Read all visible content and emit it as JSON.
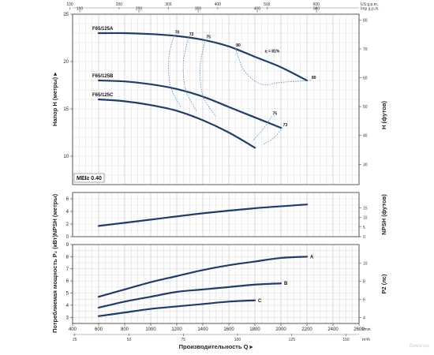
{
  "chart_data": [
    {
      "type": "line",
      "panel": "head",
      "ylabel": "Напор H (метры)",
      "ylabel_right": "H (футов)",
      "ylim": [
        7,
        25
      ],
      "y_ticks": [
        10,
        15,
        20,
        25
      ],
      "y_ticks_right": [
        10,
        20,
        30,
        40,
        50,
        60,
        70,
        80
      ],
      "x_ticks_top_usgpm": [
        100,
        200,
        300,
        400,
        500,
        600
      ],
      "x_top_usgpm_unit": "US g.p.m.",
      "x_ticks_top_impgpm": [
        100,
        200,
        300,
        400,
        500
      ],
      "x_top_impgpm_unit": "Imp g.p.m.",
      "annotation": "MEI≥ 0.40",
      "series": [
        {
          "name": "F65/125A",
          "x": [
            600,
            800,
            1000,
            1200,
            1400,
            1600,
            1800,
            2000,
            2200
          ],
          "y": [
            23.0,
            23.0,
            22.9,
            22.7,
            22.3,
            21.6,
            20.5,
            19.4,
            18.0
          ]
        },
        {
          "name": "F65/125B",
          "x": [
            600,
            800,
            1000,
            1200,
            1400,
            1600,
            1800,
            2000
          ],
          "y": [
            18.0,
            17.9,
            17.6,
            17.1,
            16.3,
            15.2,
            14.1,
            13.0
          ]
        },
        {
          "name": "F65/125C",
          "x": [
            600,
            800,
            1000,
            1200,
            1400,
            1600,
            1800
          ],
          "y": [
            16.0,
            15.8,
            15.4,
            14.8,
            13.8,
            12.5,
            10.9
          ]
        }
      ],
      "efficiency_labels": [
        {
          "label": "70",
          "x": 1180,
          "y": 22.8
        },
        {
          "label": "72",
          "x": 1290,
          "y": 22.6
        },
        {
          "label": "75",
          "x": 1420,
          "y": 22.3
        },
        {
          "label": "80",
          "x": 1650,
          "y": 21.4
        },
        {
          "label": "η = 81%",
          "x": 1870,
          "y": 20.8
        },
        {
          "label": "80",
          "x": 2230,
          "y": 18.0
        },
        {
          "label": "75",
          "x": 1930,
          "y": 14.2
        },
        {
          "label": "73",
          "x": 2010,
          "y": 13.0
        }
      ]
    },
    {
      "type": "line",
      "panel": "npsh",
      "ylabel": "NPSH (метры)",
      "ylabel_right": "NPSH (футов)",
      "ylim": [
        0,
        7
      ],
      "y_ticks": [
        0,
        2,
        4,
        6
      ],
      "y_ticks_right": [
        0,
        5,
        10,
        15
      ],
      "series": [
        {
          "x": [
            600,
            1000,
            1400,
            1800,
            2200
          ],
          "y": [
            1.7,
            2.7,
            3.7,
            4.5,
            5.1
          ]
        }
      ]
    },
    {
      "type": "line",
      "panel": "power",
      "ylabel": "Потребляемая мощность P₂ (кВт)",
      "ylabel_right": "P2 (лс)",
      "ylim": [
        2.5,
        9
      ],
      "y_ticks": [
        3,
        4,
        5,
        6,
        7,
        8,
        9
      ],
      "y_ticks_right": [
        4,
        6,
        8,
        10
      ],
      "xlabel": "Производительность Q",
      "x_unit": "l/min",
      "x_unit_bottom": "m³/h",
      "xlim": [
        400,
        2600
      ],
      "x_ticks": [
        400,
        600,
        800,
        1000,
        1200,
        1400,
        1600,
        1800,
        2000,
        2200,
        2400,
        2600
      ],
      "x_ticks_bottom": [
        25,
        50,
        75,
        100,
        125,
        150
      ],
      "series": [
        {
          "name": "A",
          "x": [
            600,
            800,
            1000,
            1200,
            1400,
            1600,
            1800,
            2000,
            2200
          ],
          "y": [
            4.7,
            5.3,
            5.9,
            6.4,
            6.9,
            7.3,
            7.6,
            7.9,
            8.0
          ]
        },
        {
          "name": "B",
          "x": [
            600,
            800,
            1000,
            1200,
            1400,
            1600,
            1800,
            2000
          ],
          "y": [
            3.8,
            4.3,
            4.7,
            5.1,
            5.3,
            5.5,
            5.7,
            5.8
          ]
        },
        {
          "name": "C",
          "x": [
            600,
            800,
            1000,
            1200,
            1400,
            1600,
            1800
          ],
          "y": [
            3.1,
            3.4,
            3.7,
            3.9,
            4.1,
            4.3,
            4.4
          ]
        }
      ]
    }
  ],
  "watermark": "Вималор",
  "colors": {
    "curve": "#1c3d6e",
    "efficiency": "#4a8fd0",
    "grid": "#cfcfcf"
  }
}
